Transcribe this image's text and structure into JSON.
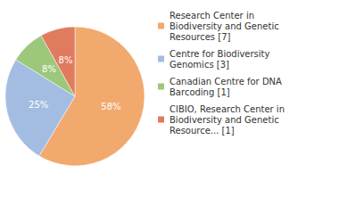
{
  "chart_data": {
    "type": "pie",
    "categories": [
      "Research Center in Biodiversity and Genetic Resources [7]",
      "Centre for Biodiversity Genomics [3]",
      "Canadian Centre for DNA Barcoding [1]",
      "CIBIO, Research Center in Biodiversity and Genetic Resource... [1]"
    ],
    "values": [
      58,
      25,
      8,
      8
    ],
    "value_labels": [
      "58%",
      "25%",
      "8%",
      "8%"
    ],
    "colors": [
      "#f1a96e",
      "#a3bde2",
      "#9dc77b",
      "#e07b60"
    ],
    "data_labels": true,
    "legend": "top-right"
  }
}
